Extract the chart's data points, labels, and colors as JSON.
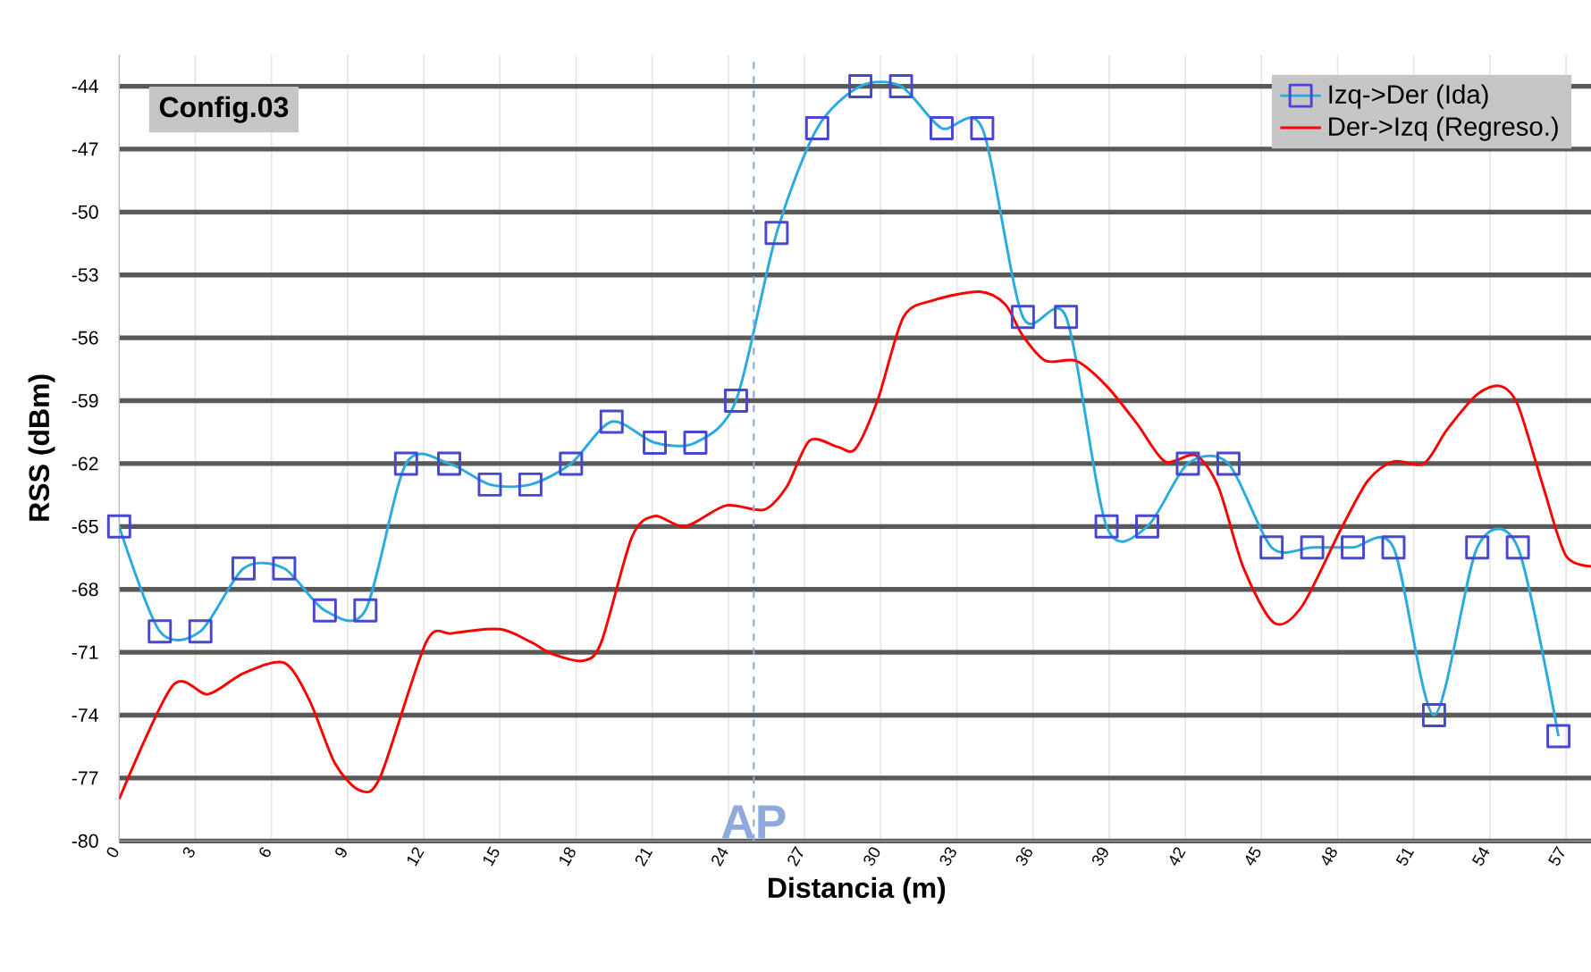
{
  "chart_data": {
    "type": "line",
    "xlabel": "Distancia (m)",
    "ylabel": "RSS (dBm)",
    "xlim": [
      0,
      58.1
    ],
    "ylim": [
      -80,
      -42.5
    ],
    "xticks": [
      0,
      3,
      6,
      9,
      12,
      15,
      18,
      21,
      24,
      27,
      30,
      33,
      36,
      39,
      42,
      45,
      48,
      51,
      54,
      57
    ],
    "yticks": [
      -80,
      -77,
      -74,
      -71,
      -68,
      -65,
      -62,
      -59,
      -56,
      -53,
      -50,
      -47,
      -44
    ],
    "grid": true,
    "legend": "top right",
    "line_style": "solid",
    "annotations": [
      "Config.03"
    ],
    "ref_lines": [
      {
        "axis": "x",
        "value": 25,
        "label": "AP",
        "color": "#8ea9db",
        "line_style": "dashed"
      }
    ],
    "series": [
      {
        "name": "Izq->Der (Ida)",
        "color": "#29abe2",
        "marker": "square",
        "x": [
          0,
          1.6,
          3.2,
          4.9,
          6.5,
          8.1,
          9.7,
          11.3,
          13,
          14.6,
          16.2,
          17.8,
          19.4,
          21.1,
          22.7,
          24.3,
          25.9,
          27.5,
          29.2,
          30.8,
          32.4,
          34,
          35.6,
          37.3,
          38.9,
          40.5,
          42.1,
          43.7,
          45.4,
          47,
          48.6,
          50.2,
          51.8,
          53.5,
          55.1,
          56.7
        ],
        "values": [
          -65,
          -70,
          -70,
          -67,
          -67,
          -69,
          -69,
          -62,
          -62,
          -63,
          -63,
          -62,
          -60,
          -61,
          -61,
          -59,
          -51,
          -46,
          -44,
          -44,
          -46,
          -46,
          -55,
          -55,
          -65,
          -65,
          -62,
          -62,
          -66,
          -66,
          -66,
          -66,
          -74,
          -66,
          -66,
          -75
        ]
      },
      {
        "name": "Der->Izq (Regreso.)",
        "color": "#ff0000",
        "marker": "none",
        "x": [
          0,
          2.1,
          3.5,
          4.9,
          6.5,
          7.5,
          8.5,
          9.5,
          10.3,
          12.1,
          13.1,
          15,
          16.2,
          17.1,
          18.3,
          19,
          20.2,
          21.1,
          22.3,
          23.9,
          25.4,
          26.3,
          27.2,
          28.3,
          29.0,
          29.9,
          30.9,
          32.1,
          33.9,
          34.9,
          35.6,
          36.5,
          37.7,
          38.9,
          40.1,
          41.2,
          42.4,
          43.3,
          44.3,
          45.5,
          46.6,
          48.1,
          49.2,
          50.2,
          51.4,
          52.3,
          53.5,
          54.4,
          55.1,
          56.1,
          57,
          58.1
        ],
        "values": [
          -78,
          -72.6,
          -73,
          -72,
          -71.5,
          -73.3,
          -76.3,
          -77.6,
          -76.9,
          -70.5,
          -70.1,
          -69.9,
          -70.5,
          -71.1,
          -71.4,
          -70.5,
          -65.5,
          -64.5,
          -65,
          -64,
          -64.2,
          -63.1,
          -60.9,
          -61.2,
          -61.3,
          -58.9,
          -55,
          -54.2,
          -53.8,
          -54.4,
          -55.9,
          -57.1,
          -57.1,
          -58.3,
          -60.1,
          -61.9,
          -61.6,
          -63.1,
          -67,
          -69.6,
          -68.8,
          -65.2,
          -62.8,
          -61.9,
          -62,
          -60.4,
          -58.7,
          -58.3,
          -59.2,
          -63.1,
          -66.4,
          -66.9
        ]
      }
    ]
  }
}
